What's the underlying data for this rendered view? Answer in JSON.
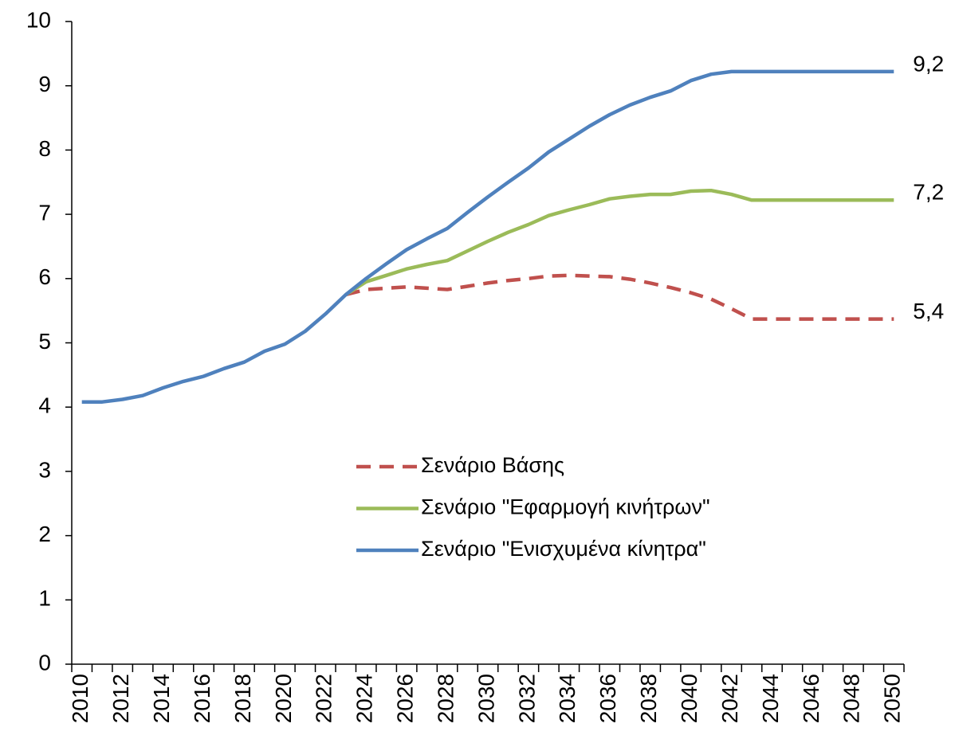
{
  "chart_data": {
    "type": "line",
    "categories": [
      "2010",
      null,
      "2012",
      null,
      "2014",
      null,
      "2016",
      null,
      "2018",
      null,
      "2020",
      null,
      "2022",
      null,
      "2024",
      null,
      "2026",
      null,
      "2028",
      null,
      "2030",
      null,
      "2032",
      null,
      "2034",
      null,
      "2036",
      null,
      "2038",
      null,
      "2040",
      null,
      "2042",
      null,
      "2044",
      null,
      "2046",
      null,
      "2048",
      null,
      "2050"
    ],
    "ylim": [
      0,
      10
    ],
    "yticks": [
      0,
      1,
      2,
      3,
      4,
      5,
      6,
      7,
      8,
      9,
      10
    ],
    "grid": false,
    "legend": "center",
    "series": [
      {
        "name": "Σενάριο Βάσης",
        "color": "#c0504d",
        "dashed": true,
        "values": [
          null,
          null,
          null,
          null,
          null,
          null,
          null,
          null,
          null,
          null,
          null,
          null,
          null,
          5.75,
          5.83,
          5.85,
          5.87,
          5.85,
          5.83,
          5.88,
          5.93,
          5.97,
          6.0,
          6.04,
          6.05,
          6.04,
          6.03,
          5.99,
          5.93,
          5.86,
          5.78,
          5.68,
          5.53,
          5.37,
          5.37,
          5.37,
          5.37,
          5.37,
          5.37,
          5.37,
          5.37
        ],
        "value_labels": [
          null,
          null,
          null,
          null,
          null,
          null,
          null,
          null,
          null,
          null,
          null,
          null,
          null,
          null,
          null,
          null,
          null,
          null,
          null,
          null,
          null,
          null,
          null,
          null,
          null,
          null,
          null,
          null,
          null,
          null,
          null,
          null,
          null,
          null,
          null,
          null,
          null,
          null,
          null,
          null,
          "5,4"
        ]
      },
      {
        "name": "Σενάριο \"Εφαρμογή κινήτρων\"",
        "color": "#9bbb59",
        "dashed": false,
        "values": [
          null,
          null,
          null,
          null,
          null,
          null,
          null,
          null,
          null,
          null,
          null,
          null,
          null,
          5.75,
          5.95,
          6.05,
          6.15,
          6.22,
          6.28,
          6.43,
          6.58,
          6.72,
          6.84,
          6.98,
          7.07,
          7.15,
          7.24,
          7.28,
          7.31,
          7.31,
          7.36,
          7.37,
          7.31,
          7.22,
          7.22,
          7.22,
          7.22,
          7.22,
          7.22,
          7.22,
          7.22
        ],
        "value_labels": [
          null,
          null,
          null,
          null,
          null,
          null,
          null,
          null,
          null,
          null,
          null,
          null,
          null,
          null,
          null,
          null,
          null,
          null,
          null,
          null,
          null,
          null,
          null,
          null,
          null,
          null,
          null,
          null,
          null,
          null,
          null,
          null,
          null,
          null,
          null,
          null,
          null,
          null,
          null,
          null,
          "7,2"
        ]
      },
      {
        "name": "Σενάριο \"Ενισχυμένα κίνητρα\"",
        "color": "#4f81bd",
        "dashed": false,
        "values": [
          4.08,
          4.08,
          4.12,
          4.18,
          4.3,
          4.4,
          4.48,
          4.6,
          4.7,
          4.87,
          4.98,
          5.18,
          5.45,
          5.75,
          6.0,
          6.23,
          6.45,
          6.62,
          6.78,
          7.03,
          7.27,
          7.5,
          7.72,
          7.97,
          8.17,
          8.37,
          8.55,
          8.7,
          8.82,
          8.92,
          9.08,
          9.18,
          9.22,
          9.22,
          9.22,
          9.22,
          9.22,
          9.22,
          9.22,
          9.22,
          9.22
        ],
        "value_labels": [
          null,
          null,
          null,
          null,
          null,
          null,
          null,
          null,
          null,
          null,
          null,
          null,
          null,
          null,
          null,
          null,
          null,
          null,
          null,
          null,
          null,
          null,
          null,
          null,
          null,
          null,
          null,
          null,
          null,
          null,
          null,
          null,
          null,
          null,
          null,
          null,
          null,
          null,
          null,
          null,
          "9,2"
        ]
      }
    ]
  }
}
